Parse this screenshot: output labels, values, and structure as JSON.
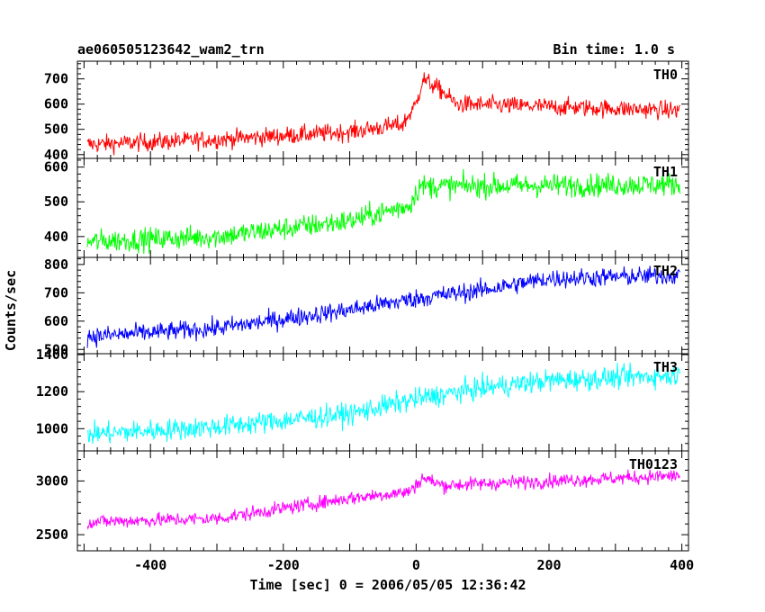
{
  "header": {
    "title": "ae060505123642_wam2_trn",
    "bin_time": "Bin time: 1.0 s"
  },
  "chart_data": {
    "type": "line",
    "title": "ae060505123642_wam2_trn",
    "subtitle": "Bin time: 1.0 s",
    "xlabel": "Time [sec] 0 = 2006/05/05 12:36:42",
    "ylabel": "Counts/sec",
    "xlim": [
      -510,
      410
    ],
    "x_ticks": [
      -400,
      -200,
      0,
      200,
      400
    ],
    "x_range_data": [
      -495,
      397
    ],
    "grid": false,
    "panels": [
      {
        "name": "TH0",
        "color": "#ff0000",
        "ylim": [
          385,
          770
        ],
        "y_ticks": [
          400,
          500,
          600,
          700
        ],
        "noise": 30,
        "trend": [
          [
            -495,
            440
          ],
          [
            -300,
            460
          ],
          [
            -100,
            490
          ],
          [
            -20,
            520
          ],
          [
            0,
            600
          ],
          [
            10,
            700
          ],
          [
            40,
            650
          ],
          [
            60,
            600
          ],
          [
            397,
            575
          ]
        ]
      },
      {
        "name": "TH1",
        "color": "#00ff00",
        "ylim": [
          340,
          625
        ],
        "y_ticks": [
          400,
          500,
          600
        ],
        "noise": 28,
        "trend": [
          [
            -495,
            385
          ],
          [
            -300,
            400
          ],
          [
            -100,
            445
          ],
          [
            -10,
            490
          ],
          [
            5,
            545
          ],
          [
            40,
            545
          ],
          [
            397,
            550
          ]
        ]
      },
      {
        "name": "TH2",
        "color": "#0000ff",
        "ylim": [
          485,
          825
        ],
        "y_ticks": [
          500,
          600,
          700,
          800
        ],
        "noise": 28,
        "trend": [
          [
            -495,
            545
          ],
          [
            -300,
            575
          ],
          [
            -100,
            640
          ],
          [
            0,
            680
          ],
          [
            100,
            710
          ],
          [
            200,
            750
          ],
          [
            397,
            762
          ]
        ]
      },
      {
        "name": "TH3",
        "color": "#00ffff",
        "ylim": [
          880,
          1405
        ],
        "y_ticks": [
          1000,
          1200,
          1400
        ],
        "noise": 50,
        "trend": [
          [
            -495,
            970
          ],
          [
            -300,
            1010
          ],
          [
            -100,
            1080
          ],
          [
            0,
            1160
          ],
          [
            100,
            1220
          ],
          [
            200,
            1260
          ],
          [
            397,
            1290
          ]
        ]
      },
      {
        "name": "TH0123",
        "color": "#ff00ff",
        "ylim": [
          2350,
          3280
        ],
        "y_ticks": [
          2500,
          3000
        ],
        "noise": 55,
        "trend": [
          [
            -495,
            2620
          ],
          [
            -300,
            2650
          ],
          [
            -100,
            2840
          ],
          [
            -10,
            2900
          ],
          [
            10,
            3030
          ],
          [
            40,
            2960
          ],
          [
            200,
            3000
          ],
          [
            397,
            3050
          ]
        ]
      }
    ]
  }
}
